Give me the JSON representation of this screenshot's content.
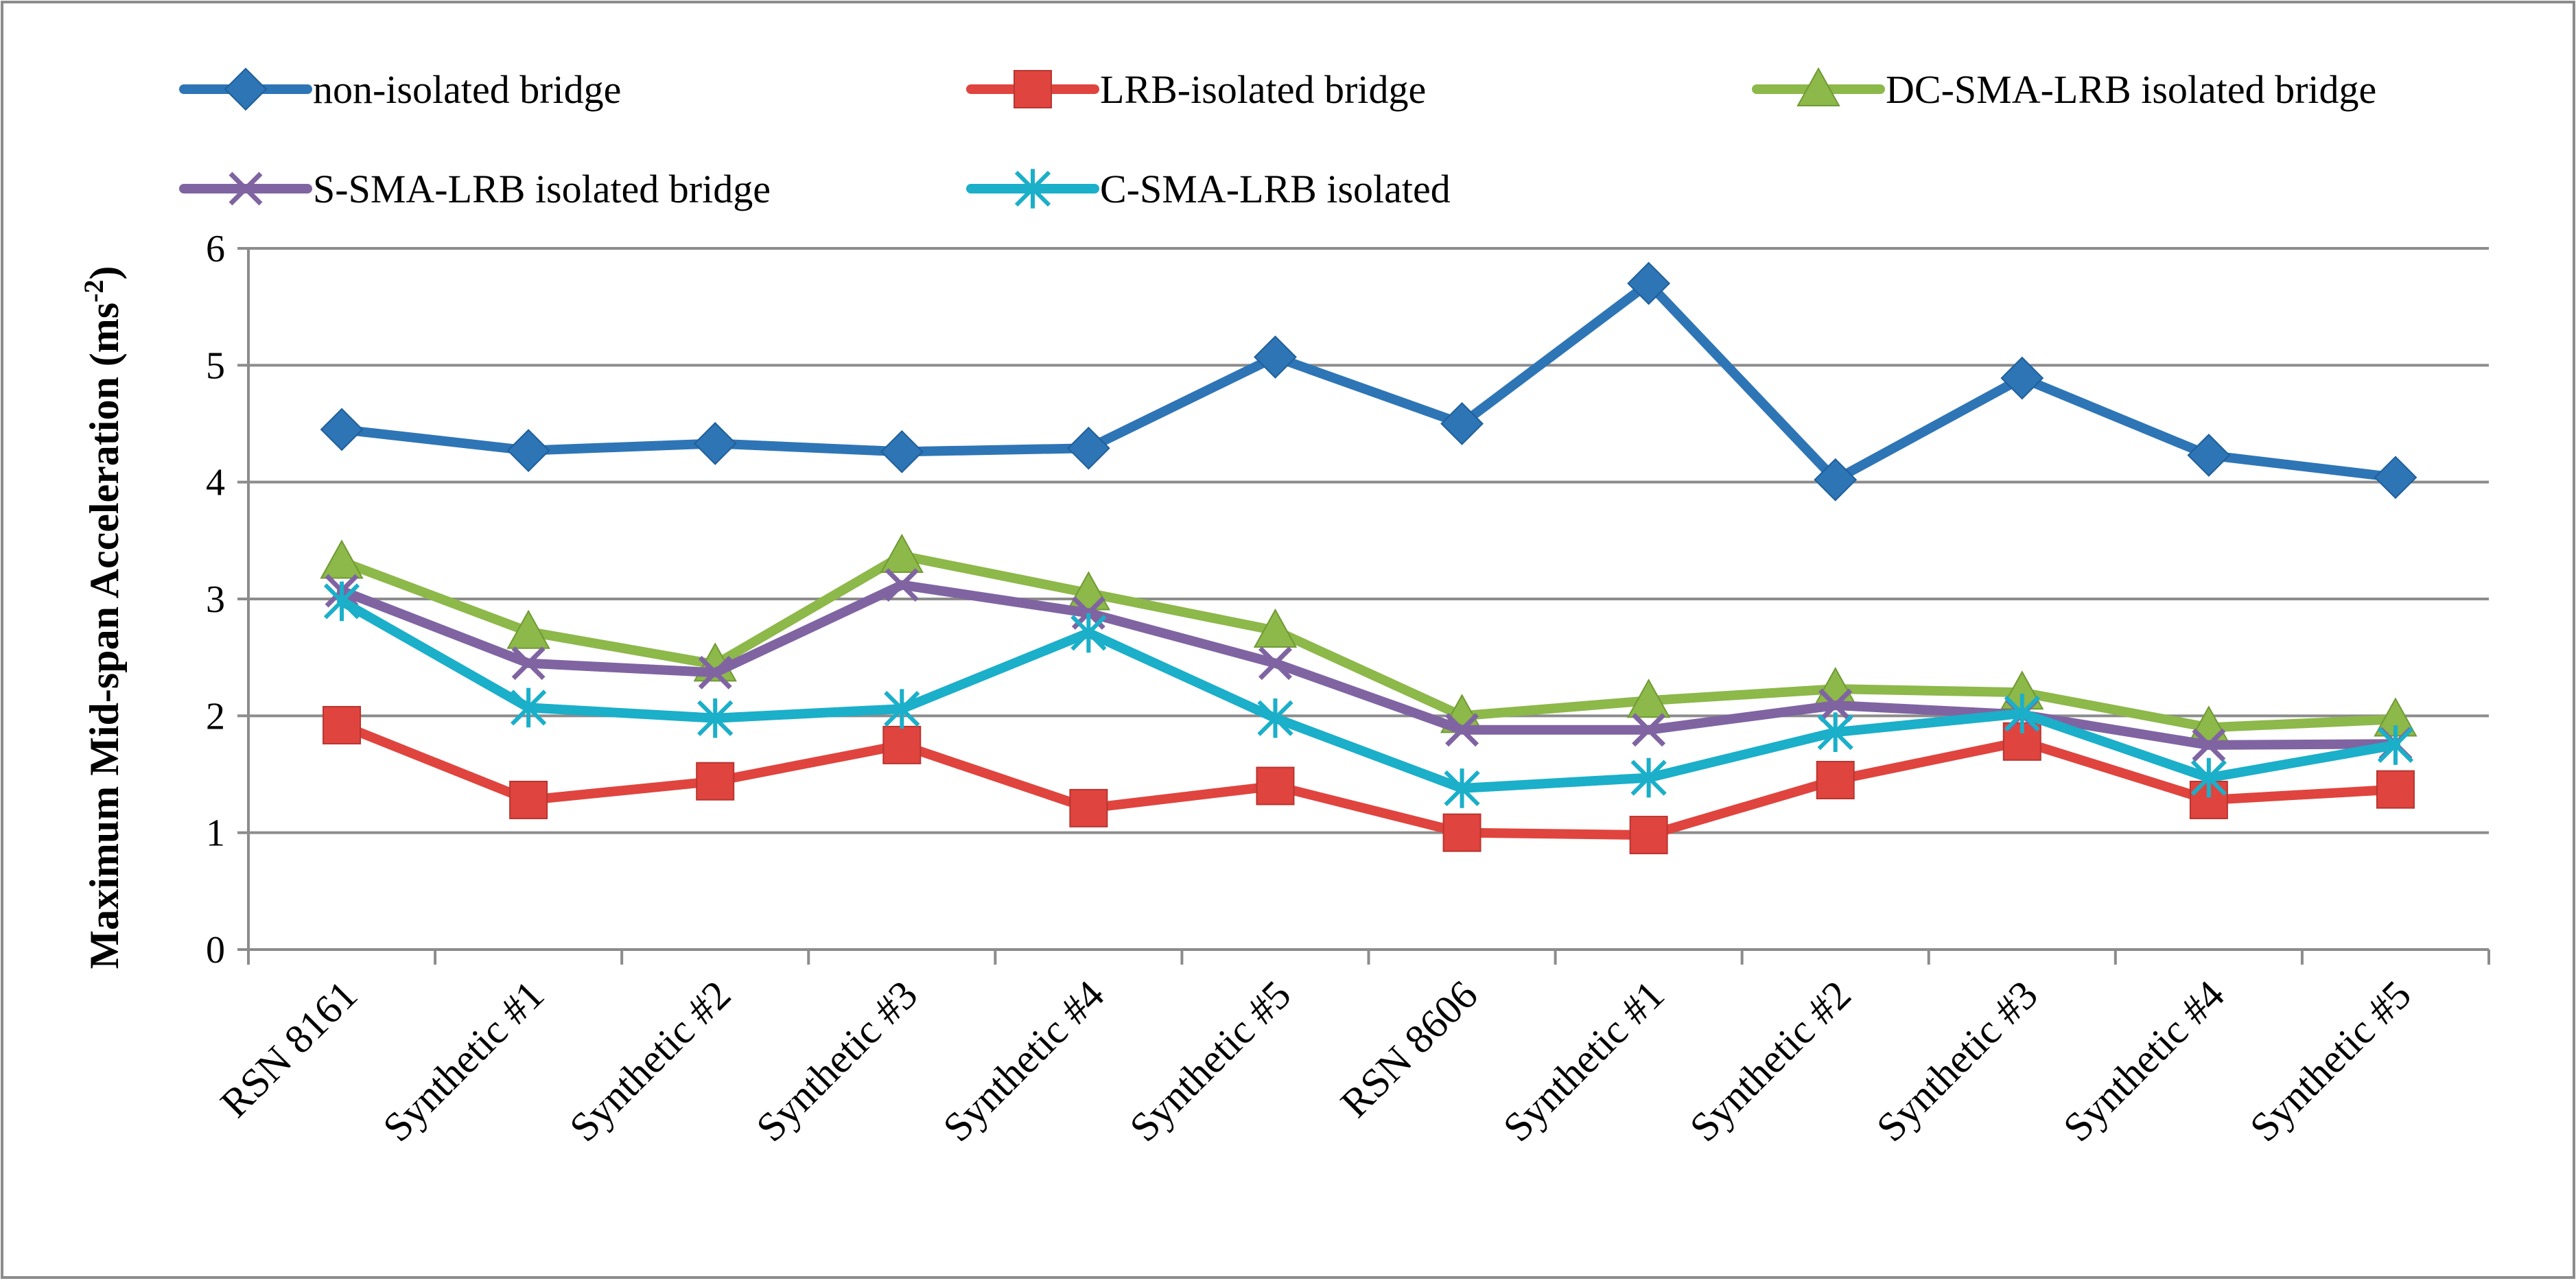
{
  "chart_data": {
    "type": "line",
    "title": "",
    "xlabel": "",
    "ylabel": "Maximum Mid-span Acceleration (ms",
    "ylabel_superscript": "-2",
    "ylabel_close": ")",
    "ylim": [
      0,
      6
    ],
    "yticks": [
      "0",
      "1",
      "2",
      "3",
      "4",
      "5",
      "6"
    ],
    "grid": true,
    "legend_position": "top",
    "categories": [
      "RSN 8161",
      "Synthetic #1",
      "Synthetic #2",
      "Synthetic #3",
      "Synthetic #4",
      "Synthetic #5",
      "RSN 8606",
      "Synthetic #1",
      "Synthetic #2",
      "Synthetic #3",
      "Synthetic #4",
      "Synthetic #5"
    ],
    "series": [
      {
        "name": "non-isolated bridge",
        "color": "#2E75B6",
        "marker": "diamond",
        "values": [
          4.45,
          4.27,
          4.33,
          4.26,
          4.29,
          5.07,
          4.5,
          5.7,
          4.02,
          4.89,
          4.23,
          4.04
        ]
      },
      {
        "name": "LRB-isolated bridge",
        "color": "#E0443E",
        "marker": "square",
        "values": [
          1.92,
          1.28,
          1.44,
          1.75,
          1.21,
          1.4,
          1.0,
          0.98,
          1.45,
          1.78,
          1.28,
          1.37
        ]
      },
      {
        "name": "DC-SMA-LRB isolated bridge",
        "color": "#8DB84A",
        "marker": "triangle",
        "values": [
          3.32,
          2.72,
          2.44,
          3.37,
          3.05,
          2.73,
          2.0,
          2.13,
          2.23,
          2.2,
          1.9,
          1.97
        ]
      },
      {
        "name": "S-SMA-LRB isolated bridge",
        "color": "#8064A2",
        "marker": "x",
        "values": [
          3.07,
          2.45,
          2.37,
          3.12,
          2.88,
          2.45,
          1.88,
          1.88,
          2.09,
          2.01,
          1.75,
          1.76
        ]
      },
      {
        "name": "C-SMA-LRB isolated",
        "color": "#1BAFC9",
        "marker": "star",
        "values": [
          2.98,
          2.07,
          1.98,
          2.06,
          2.71,
          1.98,
          1.38,
          1.47,
          1.86,
          2.02,
          1.47,
          1.75
        ]
      }
    ]
  }
}
